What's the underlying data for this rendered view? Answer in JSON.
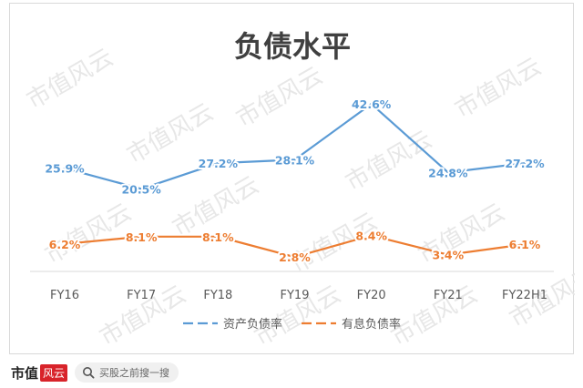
{
  "chart_data": {
    "type": "line",
    "title": "负债水平",
    "categories": [
      "FY16",
      "FY17",
      "FY18",
      "FY19",
      "FY20",
      "FY21",
      "FY22H1"
    ],
    "series": [
      {
        "name": "资产负债率",
        "values": [
          25.9,
          20.5,
          27.2,
          28.1,
          42.6,
          24.8,
          27.2
        ],
        "labels": [
          "25.9%",
          "20.5%",
          "27.2%",
          "28.1%",
          "42.6%",
          "24.8%",
          "27.2%"
        ],
        "color": "#5b9bd5"
      },
      {
        "name": "有息负债率",
        "values": [
          6.2,
          8.1,
          8.1,
          2.8,
          8.4,
          3.4,
          6.1
        ],
        "labels": [
          "6.2%",
          "8.1%",
          "8.1%",
          "2.8%",
          "8.4%",
          "3.4%",
          "6.1%"
        ],
        "color": "#ed7d31"
      }
    ],
    "legend_position": "bottom",
    "grid": false,
    "ylim": [
      0,
      45
    ]
  },
  "watermark_text": "市值风云",
  "footer": {
    "brand_text": "市值",
    "brand_stamp": "风云",
    "search_placeholder": "买股之前搜一搜"
  }
}
